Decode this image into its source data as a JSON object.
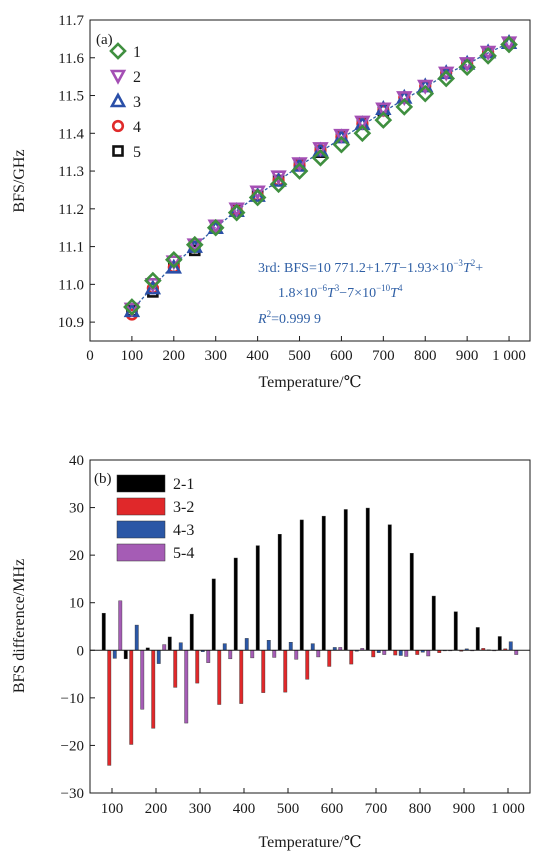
{
  "colors": {
    "s1": "#3f8f3f",
    "s2": "#a44fb4",
    "s3": "#2a4fa8",
    "s4": "#e02a2a",
    "s5": "#111111",
    "d21": "#000000",
    "d32": "#e0282a",
    "d43": "#2b57a6",
    "d54": "#a55cb5",
    "fit": "#2f5fa5"
  },
  "chart_data": [
    {
      "type": "scatter",
      "panel_label": "(a)",
      "xlabel": "Temperature/℃",
      "ylabel": "BFS/GHz",
      "xlim": [
        0,
        1050
      ],
      "ylim": [
        10.85,
        11.7
      ],
      "x_ticks": [
        "0",
        "100",
        "200",
        "300",
        "400",
        "500",
        "600",
        "700",
        "800",
        "900",
        "1 000"
      ],
      "y_ticks": [
        "10.9",
        "11.0",
        "11.1",
        "11.2",
        "11.3",
        "11.4",
        "11.5",
        "11.6",
        "11.7"
      ],
      "legend": [
        "1",
        "2",
        "3",
        "4",
        "5"
      ],
      "legend_position": "top-left",
      "x": [
        100,
        150,
        200,
        250,
        300,
        350,
        400,
        450,
        500,
        550,
        600,
        650,
        700,
        750,
        800,
        850,
        900,
        950,
        1000
      ],
      "series": [
        {
          "name": "1",
          "marker": "diamond",
          "values": [
            10.94,
            11.01,
            11.065,
            11.105,
            11.15,
            11.19,
            11.23,
            11.265,
            11.3,
            11.335,
            11.37,
            11.4,
            11.435,
            11.47,
            11.505,
            11.545,
            11.575,
            11.605,
            11.635
          ]
        },
        {
          "name": "2",
          "marker": "triangle-down",
          "values": [
            10.935,
            11.0,
            11.06,
            11.105,
            11.155,
            11.2,
            11.245,
            11.285,
            11.32,
            11.36,
            11.395,
            11.43,
            11.465,
            11.495,
            11.525,
            11.56,
            11.585,
            11.615,
            11.64
          ]
        },
        {
          "name": "3",
          "marker": "triangle-up",
          "values": [
            10.93,
            10.99,
            11.045,
            11.1,
            11.15,
            11.195,
            11.235,
            11.275,
            11.315,
            11.355,
            11.39,
            11.425,
            11.465,
            11.495,
            11.525,
            11.56,
            11.585,
            11.615,
            11.64
          ]
        },
        {
          "name": "4",
          "marker": "circle",
          "values": [
            10.92,
            10.99,
            11.045,
            11.1,
            11.15,
            11.195,
            11.235,
            11.275,
            11.315,
            11.355,
            11.39,
            11.425,
            11.46,
            11.495,
            11.525,
            11.56,
            11.585,
            11.615,
            11.64
          ]
        },
        {
          "name": "5",
          "marker": "square",
          "values": [
            10.93,
            10.98,
            11.045,
            11.09,
            11.15,
            11.195,
            11.235,
            11.275,
            11.315,
            11.35,
            11.39,
            11.425,
            11.46,
            11.495,
            11.525,
            11.56,
            11.585,
            11.615,
            11.64
          ]
        }
      ],
      "fit": {
        "label": "3rd",
        "coefficients": [
          10771.2,
          1.7,
          -0.00193,
          1.8e-06,
          -7e-10
        ],
        "equation_line1": "3rd: BFS=10 771.2+1.7T−1.93×10⁻³T²+",
        "equation_line2": "1.8×10⁻⁶T³−7×10⁻¹⁰T⁴",
        "r2_label": "R²=0.999 9"
      }
    },
    {
      "type": "bar",
      "panel_label": "(b)",
      "xlabel": "Temperature/℃",
      "ylabel": "BFS difference/MHz",
      "xlim": [
        50,
        1050
      ],
      "ylim": [
        -30,
        40
      ],
      "x_ticks": [
        "100",
        "200",
        "300",
        "400",
        "500",
        "600",
        "700",
        "800",
        "900",
        "1 000"
      ],
      "y_ticks": [
        "−30",
        "−20",
        "−10",
        "0",
        "10",
        "20",
        "30",
        "40"
      ],
      "legend": [
        "2-1",
        "3-2",
        "4-3",
        "5-4"
      ],
      "legend_position": "top-left",
      "categories": [
        100,
        150,
        200,
        250,
        300,
        350,
        400,
        450,
        500,
        550,
        600,
        650,
        700,
        750,
        800,
        850,
        900,
        950,
        1000
      ],
      "series": [
        {
          "name": "2-1",
          "values": [
            7.8,
            -1.8,
            0.5,
            2.8,
            7.6,
            15.0,
            19.4,
            22.0,
            24.4,
            27.4,
            28.2,
            29.6,
            29.9,
            26.4,
            20.4,
            11.4,
            8.1,
            4.8,
            2.9
          ]
        },
        {
          "name": "3-2",
          "values": [
            -24.2,
            -19.8,
            -16.4,
            -7.8,
            -6.9,
            -11.4,
            -11.2,
            -8.9,
            -8.8,
            -6.1,
            -3.4,
            -2.9,
            -1.4,
            -1.0,
            -0.9,
            -0.5,
            -0.2,
            0.4,
            0.3
          ]
        },
        {
          "name": "4-3",
          "values": [
            -1.7,
            5.3,
            -2.8,
            1.6,
            -0.3,
            1.4,
            2.5,
            2.1,
            1.7,
            1.4,
            0.6,
            -0.2,
            -0.5,
            -1.1,
            -0.4,
            0.0,
            0.3,
            0.1,
            1.8
          ]
        },
        {
          "name": "5-4",
          "values": [
            10.4,
            -12.4,
            1.2,
            -15.3,
            -2.6,
            -1.8,
            -1.6,
            -1.5,
            -1.9,
            -1.4,
            0.6,
            0.4,
            -0.9,
            -1.3,
            -1.2,
            0.0,
            0.0,
            0.0,
            -0.9
          ]
        }
      ]
    }
  ]
}
